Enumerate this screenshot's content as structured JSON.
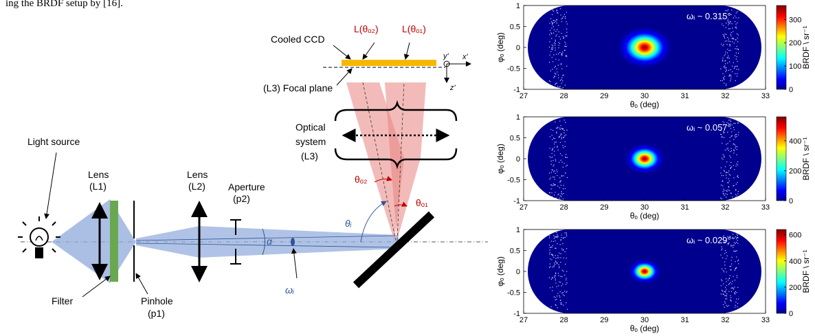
{
  "caption": "ing the BRDF setup by [16].",
  "diagram": {
    "light_source": "Light source",
    "lens_l1": [
      "Lens",
      "(L1)"
    ],
    "filter": "Filter",
    "pinhole": [
      "Pinhole",
      "(p1)"
    ],
    "lens_l2": [
      "Lens",
      "(L2)"
    ],
    "aperture": [
      "Aperture",
      "(p2)"
    ],
    "cooled_ccd": "Cooled CCD",
    "focal_plane": "(L3) Focal plane",
    "optical_system": [
      "Optical",
      "system",
      "(L3)"
    ],
    "alpha": "α",
    "omega_i": "ωᵢ",
    "theta_i": "θᵢ",
    "theta_o2": "θₒ₂",
    "theta_o1": "θₒ₁",
    "l_theta_o2": "L(θₒ₂)",
    "l_theta_o1": "L(θₒ₁)",
    "axis_y": "y'",
    "axis_x": "x'",
    "axis_z": "z'",
    "colors": {
      "beam_blue": "#8fa9dc",
      "beam_red": "#e8847f",
      "filter_green": "#6aa84f",
      "ccd_yellow": "#f5b800",
      "red_text": "#c00000",
      "blue_text": "#2f5597"
    }
  },
  "chart_data": [
    {
      "type": "heatmap",
      "annotation": "ωᵢ ~ 0.315°",
      "xlabel": "θₒ (deg)",
      "ylabel": "φₒ (deg)",
      "xlim": [
        27,
        33
      ],
      "ylim": [
        -1,
        1
      ],
      "xticks": [
        "27",
        "28",
        "29",
        "30",
        "31",
        "32",
        "33"
      ],
      "yticks": [
        "1",
        "0.5",
        "0",
        "-0.5",
        "-1"
      ],
      "colorbar": {
        "label": "BRDF \\ sr⁻¹",
        "ticks": [
          "300",
          "200",
          "100",
          "0"
        ],
        "range": [
          0,
          360
        ]
      },
      "peak": {
        "theta": 30.0,
        "phi": 0.0,
        "value": 360,
        "width": 0.3
      }
    },
    {
      "type": "heatmap",
      "annotation": "ωᵢ ~ 0.057°",
      "xlabel": "θₒ (deg)",
      "ylabel": "φₒ (deg)",
      "xlim": [
        27,
        33
      ],
      "ylim": [
        -1,
        1
      ],
      "xticks": [
        "27",
        "28",
        "29",
        "30",
        "31",
        "32",
        "33"
      ],
      "yticks": [
        "1",
        "0.5",
        "0",
        "-0.5",
        "-1"
      ],
      "colorbar": {
        "label": "BRDF \\ sr⁻¹",
        "ticks": [
          "400",
          "200",
          "0"
        ],
        "range": [
          0,
          560
        ]
      },
      "peak": {
        "theta": 30.0,
        "phi": 0.0,
        "value": 560,
        "width": 0.22
      }
    },
    {
      "type": "heatmap",
      "annotation": "ωᵢ ~ 0.029°",
      "xlabel": "θₒ (deg)",
      "ylabel": "φₒ (deg)",
      "xlim": [
        27,
        33
      ],
      "ylim": [
        -1,
        1
      ],
      "xticks": [
        "27",
        "28",
        "29",
        "30",
        "31",
        "32",
        "33"
      ],
      "yticks": [
        "1",
        "0.5",
        "0",
        "-0.5",
        "-1"
      ],
      "colorbar": {
        "label": "BRDF \\ sr⁻¹",
        "ticks": [
          "600",
          "400",
          "200",
          "0"
        ],
        "range": [
          0,
          640
        ]
      },
      "peak": {
        "theta": 30.0,
        "phi": 0.0,
        "value": 640,
        "width": 0.18
      }
    }
  ]
}
